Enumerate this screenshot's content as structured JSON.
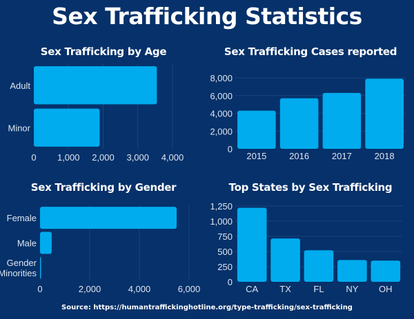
{
  "title": "Sex Trafficking Statistics",
  "source": "Source: https://humantraffickinghotline.org/type-trafficking/sex-trafficking",
  "colors": {
    "background": "#06316a",
    "bar": "#00acee",
    "grid": "#1a447c",
    "text": "#dde6f2"
  },
  "chart_data": [
    {
      "id": "age",
      "type": "bar",
      "orientation": "horizontal",
      "title": "Sex Trafficking by Age",
      "categories": [
        "Adult",
        "Minor"
      ],
      "values": [
        3550,
        1900
      ],
      "xlim": [
        0,
        4000
      ],
      "ticks": [
        0,
        1000,
        2000,
        3000,
        4000
      ],
      "tick_labels": [
        "0",
        "1,000",
        "2,000",
        "3,000",
        "4,000"
      ],
      "grid": true,
      "xlabel": "",
      "ylabel": ""
    },
    {
      "id": "cases",
      "type": "bar",
      "orientation": "vertical",
      "title": "Sex Trafficking Cases reported",
      "categories": [
        "2015",
        "2016",
        "2017",
        "2018"
      ],
      "values": [
        4300,
        5700,
        6300,
        7900
      ],
      "ylim": [
        0,
        8000
      ],
      "ticks": [
        0,
        2000,
        4000,
        6000,
        8000
      ],
      "tick_labels": [
        "0",
        "2,000",
        "4,000",
        "6,000",
        "8,000"
      ],
      "grid": true,
      "xlabel": "",
      "ylabel": ""
    },
    {
      "id": "gender",
      "type": "bar",
      "orientation": "horizontal",
      "title": "Sex Trafficking by Gender",
      "categories": [
        "Female",
        "Male",
        "Gender Minorities"
      ],
      "category_lines": [
        [
          "Female"
        ],
        [
          "Male"
        ],
        [
          "Gender",
          "Minorities"
        ]
      ],
      "values": [
        5500,
        470,
        40
      ],
      "xlim": [
        0,
        6000
      ],
      "ticks": [
        0,
        2000,
        4000,
        6000
      ],
      "tick_labels": [
        "0",
        "2,000",
        "4,000",
        "6,000"
      ],
      "grid": true,
      "xlabel": "",
      "ylabel": ""
    },
    {
      "id": "states",
      "type": "bar",
      "orientation": "vertical",
      "title": "Top States by Sex Trafficking",
      "categories": [
        "CA",
        "TX",
        "FL",
        "NY",
        "OH"
      ],
      "values": [
        1220,
        715,
        520,
        360,
        350
      ],
      "ylim": [
        0,
        1250
      ],
      "ticks": [
        0,
        250,
        500,
        750,
        1000,
        1250
      ],
      "tick_labels": [
        "0",
        "250",
        "500",
        "750",
        "1,000",
        "1,250"
      ],
      "grid": true,
      "xlabel": "",
      "ylabel": ""
    }
  ]
}
